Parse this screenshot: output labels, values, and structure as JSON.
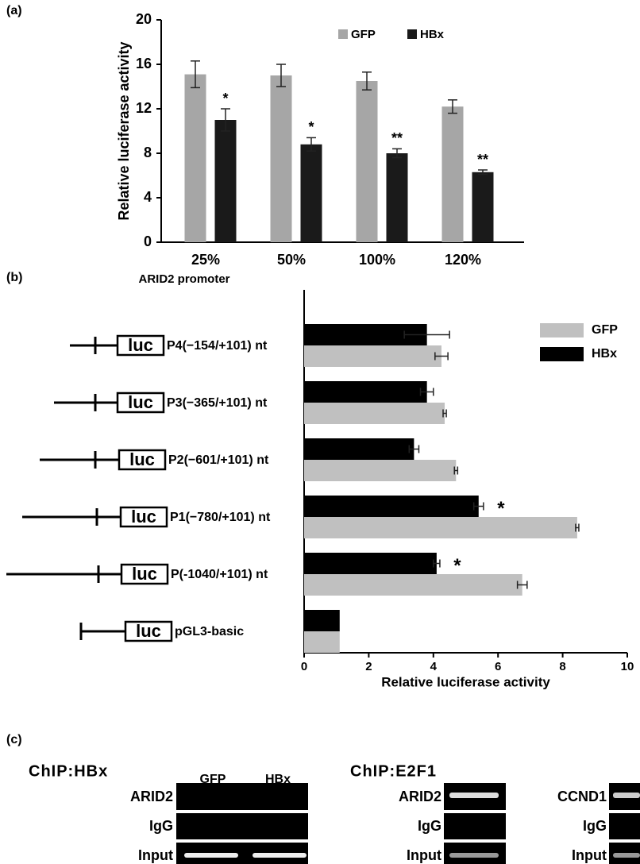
{
  "chart_data": [
    {
      "type": "bar",
      "panel_label": "(a)",
      "y_label": "Relative luciferase activity",
      "categories": [
        "25%",
        "50%",
        "100%",
        "120%"
      ],
      "series": [
        {
          "name": "GFP",
          "color": "#a6a6a6",
          "values": [
            15.1,
            15.0,
            14.5,
            12.2
          ],
          "errors": [
            1.2,
            1.0,
            0.8,
            0.6
          ]
        },
        {
          "name": "HBx",
          "color": "#1a1a1a",
          "values": [
            11.0,
            8.8,
            8.0,
            6.3
          ],
          "errors": [
            1.0,
            0.6,
            0.4,
            0.2
          ]
        }
      ],
      "annotations": [
        "*",
        "*",
        "**",
        "**"
      ],
      "ylim": [
        0,
        20
      ],
      "yticks": [
        0,
        4,
        8,
        12,
        16,
        20
      ],
      "legend": "top"
    },
    {
      "type": "barh",
      "panel_label": "(b)",
      "subtitle": "ARID2 promoter",
      "construct_label": "luc",
      "x_label": "Relative luciferase activity",
      "categories": [
        "P4(−154/+101) nt",
        "P3(−365/+101) nt",
        "P2(−601/+101) nt",
        "P1(−780/+101) nt",
        "P(-1040/+101) nt",
        "pGL3-basic"
      ],
      "series": [
        {
          "name": "GFP",
          "color": "#c0c0c0",
          "values": [
            4.25,
            4.35,
            4.7,
            8.45,
            6.75,
            1.1
          ],
          "errors": [
            0.2,
            0.05,
            0.05,
            0.05,
            0.15,
            null
          ]
        },
        {
          "name": "HBx",
          "color": "#000000",
          "values": [
            3.8,
            3.8,
            3.4,
            5.4,
            4.1,
            1.1
          ],
          "errors": [
            0.7,
            0.2,
            0.15,
            0.15,
            0.1,
            null
          ]
        }
      ],
      "annotations": [
        null,
        null,
        null,
        "*",
        "*",
        null
      ],
      "xlim": [
        0,
        10
      ],
      "xticks": [
        0,
        2,
        4,
        6,
        8,
        10
      ],
      "legend": "top-right"
    }
  ],
  "gel": {
    "panel_label": "(c)",
    "blocks": [
      {
        "title": "ChIP:HBx",
        "columns": [
          "GFP",
          "HBx"
        ],
        "rows": [
          "ARID2",
          "IgG",
          "Input"
        ]
      },
      {
        "title": "ChIP:E2F1",
        "rows": [
          "ARID2",
          "IgG",
          "Input"
        ]
      },
      {
        "rows": [
          "CCND1",
          "IgG",
          "Input"
        ]
      }
    ]
  }
}
